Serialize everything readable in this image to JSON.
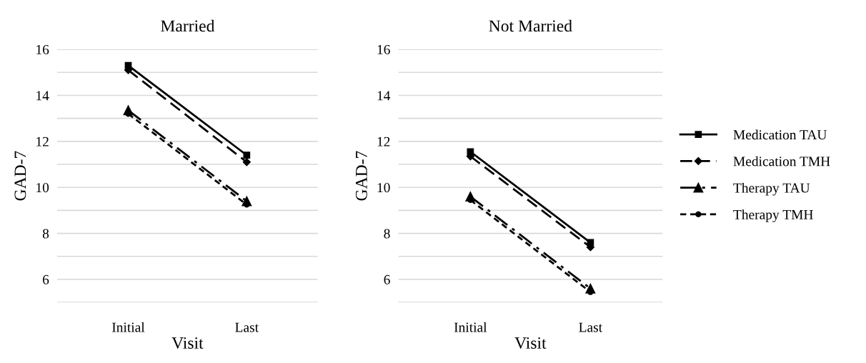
{
  "chart_data": [
    {
      "type": "line",
      "title": "Married",
      "xlabel": "Visit",
      "ylabel": "GAD-7",
      "categories": [
        "Initial",
        "Last"
      ],
      "ylim": [
        5,
        16
      ],
      "yticks": [
        {
          "value": 5,
          "label": null
        },
        6,
        {
          "value": 7,
          "label": null
        },
        8,
        {
          "value": 9,
          "label": null
        },
        10,
        {
          "value": 11,
          "label": null
        },
        12,
        {
          "value": 13,
          "label": null
        },
        14,
        {
          "value": 15,
          "label": null
        },
        16
      ],
      "grid": "y",
      "legend": false,
      "series": [
        {
          "color": "#000000",
          "marker": "square",
          "line_style": "solid",
          "values": [
            15.3,
            11.4
          ]
        },
        {
          "color": "#000000",
          "marker": "diamond",
          "line_style": "dashed",
          "values": [
            15.1,
            11.1
          ]
        },
        {
          "color": "#000000",
          "marker": "triangle",
          "line_style": "dashdot",
          "values": [
            13.35,
            9.4
          ]
        },
        {
          "color": "#000000",
          "marker": "circle",
          "line_style": "dotted",
          "values": [
            13.2,
            9.25
          ]
        }
      ]
    },
    {
      "type": "line",
      "title": "Not Married",
      "xlabel": "Visit",
      "ylabel": "GAD-7",
      "categories": [
        "Initial",
        "Last"
      ],
      "ylim": [
        5,
        16
      ],
      "yticks": [
        {
          "value": 5,
          "label": null
        },
        6,
        {
          "value": 7,
          "label": null
        },
        8,
        {
          "value": 9,
          "label": null
        },
        10,
        {
          "value": 11,
          "label": null
        },
        12,
        {
          "value": 13,
          "label": null
        },
        14,
        {
          "value": 15,
          "label": null
        },
        16
      ],
      "grid": "y",
      "legend": "right",
      "series": [
        {
          "name": "Medication TAU",
          "color": "#000000",
          "marker": "square",
          "line_style": "solid",
          "values": [
            11.55,
            7.6
          ]
        },
        {
          "name": "Medication TMH",
          "color": "#000000",
          "marker": "diamond",
          "line_style": "dashed",
          "values": [
            11.35,
            7.4
          ]
        },
        {
          "name": "Therapy TAU",
          "color": "#000000",
          "marker": "triangle",
          "line_style": "dashdot",
          "values": [
            9.6,
            5.6
          ]
        },
        {
          "name": "Therapy TMH",
          "color": "#000000",
          "marker": "circle",
          "line_style": "dotted",
          "values": [
            9.45,
            5.45
          ]
        }
      ]
    }
  ]
}
